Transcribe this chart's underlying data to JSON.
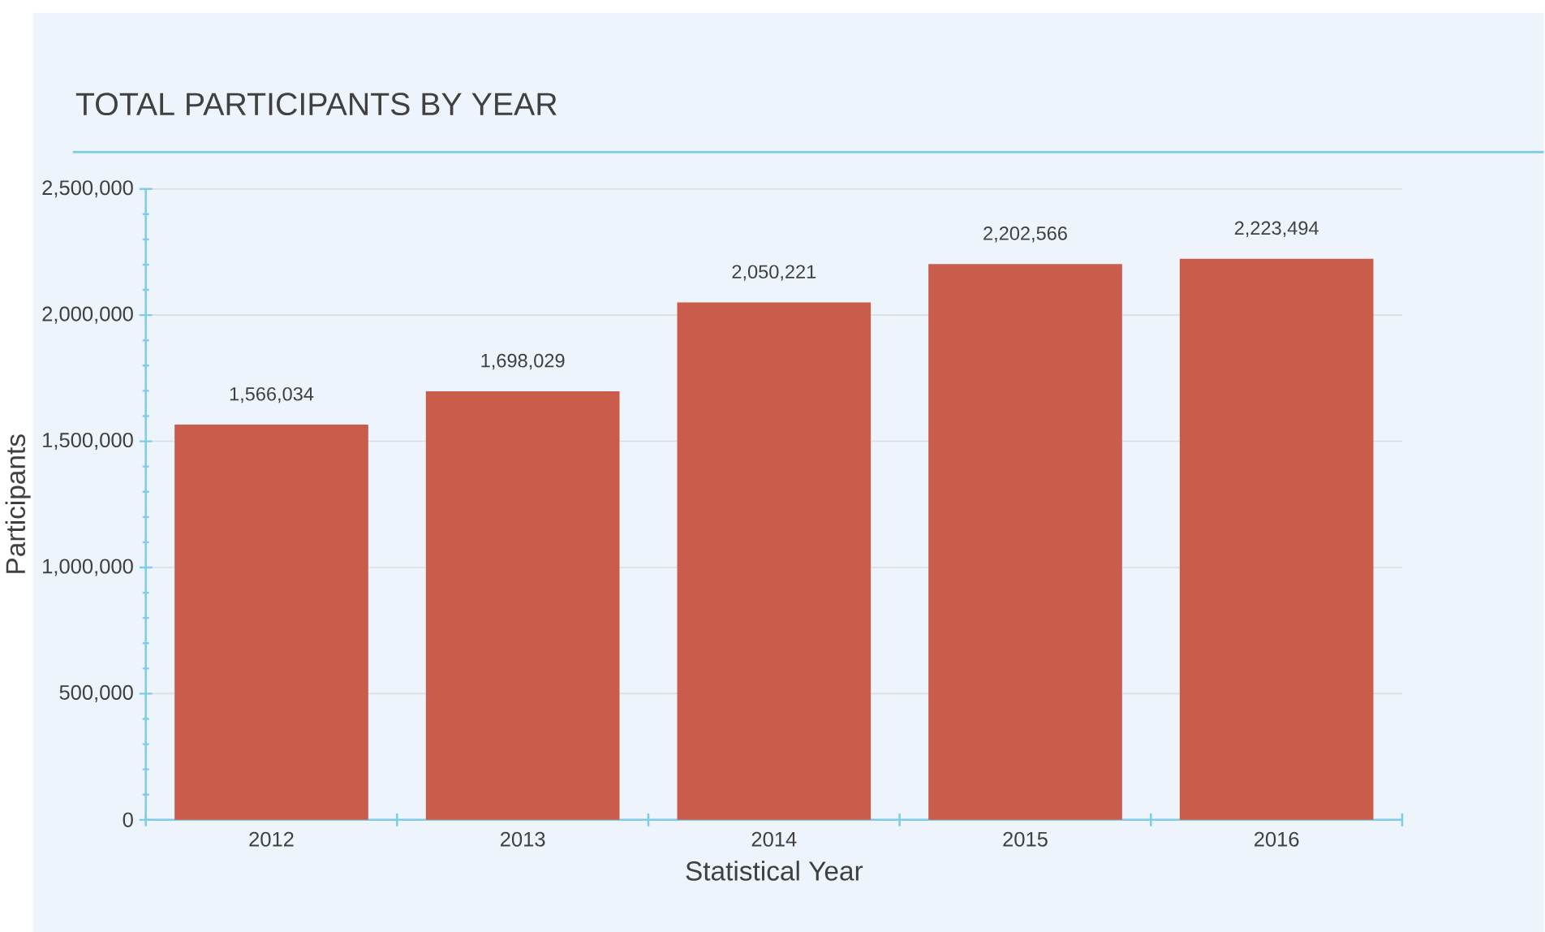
{
  "chart_data": {
    "type": "bar",
    "title": "TOTAL PARTICIPANTS BY YEAR",
    "xlabel": "Statistical Year",
    "ylabel": "Participants",
    "categories": [
      "2012",
      "2013",
      "2014",
      "2015",
      "2016"
    ],
    "values": [
      1566034,
      1698029,
      2050221,
      2202566,
      2223494
    ],
    "value_labels": [
      "1,566,034",
      "1,698,029",
      "2,050,221",
      "2,202,566",
      "2,223,494"
    ],
    "color": "#c95c4a",
    "ylim": [
      0,
      2500000
    ],
    "yticks": [
      {
        "value": 0,
        "label": "0"
      },
      {
        "value": 500000,
        "label": "500,000"
      },
      {
        "value": 1000000,
        "label": "1,000,000"
      },
      {
        "value": 1500000,
        "label": "1,500,000"
      },
      {
        "value": 2000000,
        "label": "2,000,000"
      },
      {
        "value": 2500000,
        "label": "2,500,000"
      }
    ],
    "grid": "y",
    "legend": false
  }
}
